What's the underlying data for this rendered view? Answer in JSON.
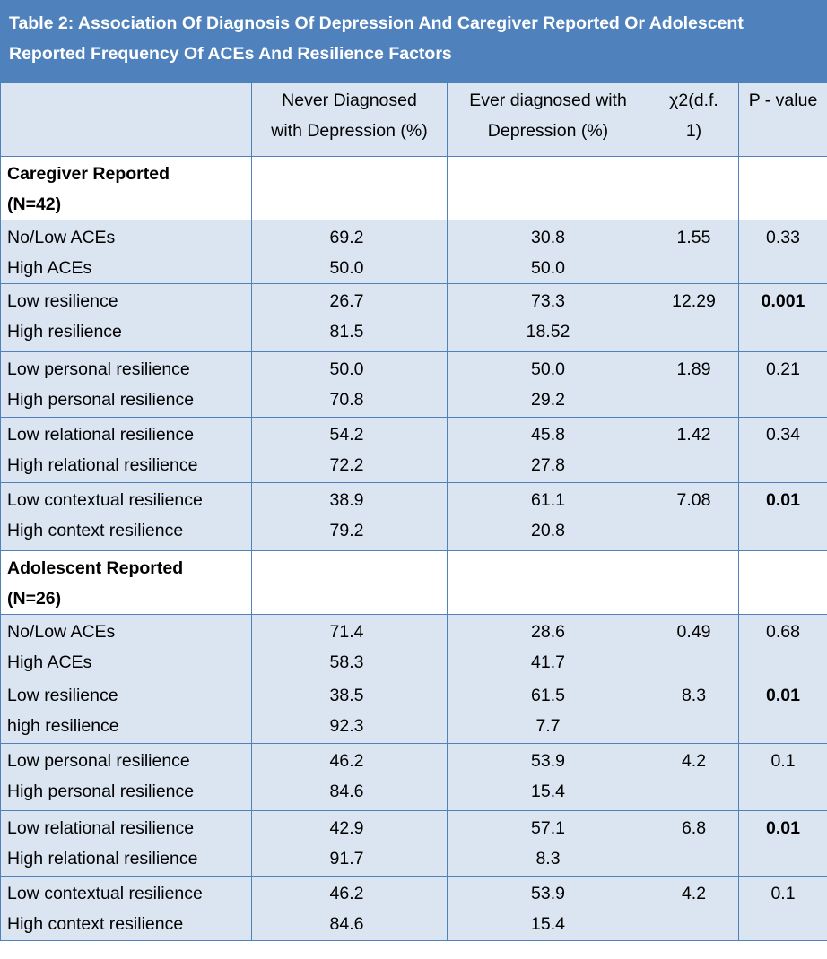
{
  "title": {
    "line1": "Table 2: Association Of Diagnosis Of Depression And Caregiver Reported Or Adolescent",
    "line2": "Reported Frequency Of ACEs And Resilience Factors"
  },
  "headers": {
    "col1": [
      "Never Diagnosed",
      "with Depression (%)"
    ],
    "col2": [
      "Ever diagnosed with",
      "Depression (%)"
    ],
    "col3": [
      "χ2(d.f.",
      "1)"
    ],
    "col4": [
      "P - value"
    ]
  },
  "sections": [
    {
      "label": [
        "Caregiver Reported",
        "(N=42)"
      ],
      "rows": [
        {
          "labels": [
            "No/Low ACEs",
            "High ACEs"
          ],
          "never": [
            "69.2",
            "50.0"
          ],
          "ever": [
            "30.8",
            "50.0"
          ],
          "chi": "1.55",
          "p": "0.33",
          "p_bold": false
        },
        {
          "labels": [
            "Low resilience",
            "High resilience"
          ],
          "never": [
            "26.7",
            "81.5"
          ],
          "ever": [
            "73.3",
            "18.52"
          ],
          "chi": "12.29",
          "p": "0.001",
          "p_bold": true
        },
        {
          "labels": [
            "Low personal resilience",
            "High personal resilience"
          ],
          "never": [
            "50.0",
            "70.8"
          ],
          "ever": [
            "50.0",
            "29.2"
          ],
          "chi": "1.89",
          "p": "0.21",
          "p_bold": false
        },
        {
          "labels": [
            "Low relational resilience",
            "High relational resilience"
          ],
          "never": [
            "54.2",
            "72.2"
          ],
          "ever": [
            "45.8",
            "27.8"
          ],
          "chi": "1.42",
          "p": "0.34",
          "p_bold": false
        },
        {
          "labels": [
            "Low contextual resilience",
            "High context resilience"
          ],
          "never": [
            "38.9",
            "79.2"
          ],
          "ever": [
            "61.1",
            "20.8"
          ],
          "chi": "7.08",
          "p": "0.01",
          "p_bold": true
        }
      ]
    },
    {
      "label": [
        "Adolescent Reported",
        "(N=26)"
      ],
      "rows": [
        {
          "labels": [
            "No/Low ACEs",
            "High ACEs"
          ],
          "never": [
            "71.4",
            "58.3"
          ],
          "ever": [
            "28.6",
            "41.7"
          ],
          "chi": "0.49",
          "p": "0.68",
          "p_bold": false
        },
        {
          "labels": [
            "Low resilience",
            "high resilience"
          ],
          "never": [
            "38.5",
            "92.3"
          ],
          "ever": [
            "61.5",
            "7.7"
          ],
          "chi": "8.3",
          "p": "0.01",
          "p_bold": true
        },
        {
          "labels": [
            "Low personal resilience",
            "High personal resilience"
          ],
          "never": [
            "46.2",
            "84.6"
          ],
          "ever": [
            "53.9",
            "15.4"
          ],
          "chi": "4.2",
          "p": "0.1",
          "p_bold": false
        },
        {
          "labels": [
            "Low relational resilience",
            "High relational resilience"
          ],
          "never": [
            "42.9",
            "91.7"
          ],
          "ever": [
            "57.1",
            "8.3"
          ],
          "chi": "6.8",
          "p": "0.01",
          "p_bold": true
        },
        {
          "labels": [
            "Low contextual resilience",
            "High context resilience"
          ],
          "never": [
            "46.2",
            "84.6"
          ],
          "ever": [
            "53.9",
            "15.4"
          ],
          "chi": "4.2",
          "p": "0.1",
          "p_bold": false
        }
      ]
    }
  ],
  "colors": {
    "header_bg": "#4f81bd",
    "shade": "#dbe5f1",
    "border": "#4f81bd"
  }
}
